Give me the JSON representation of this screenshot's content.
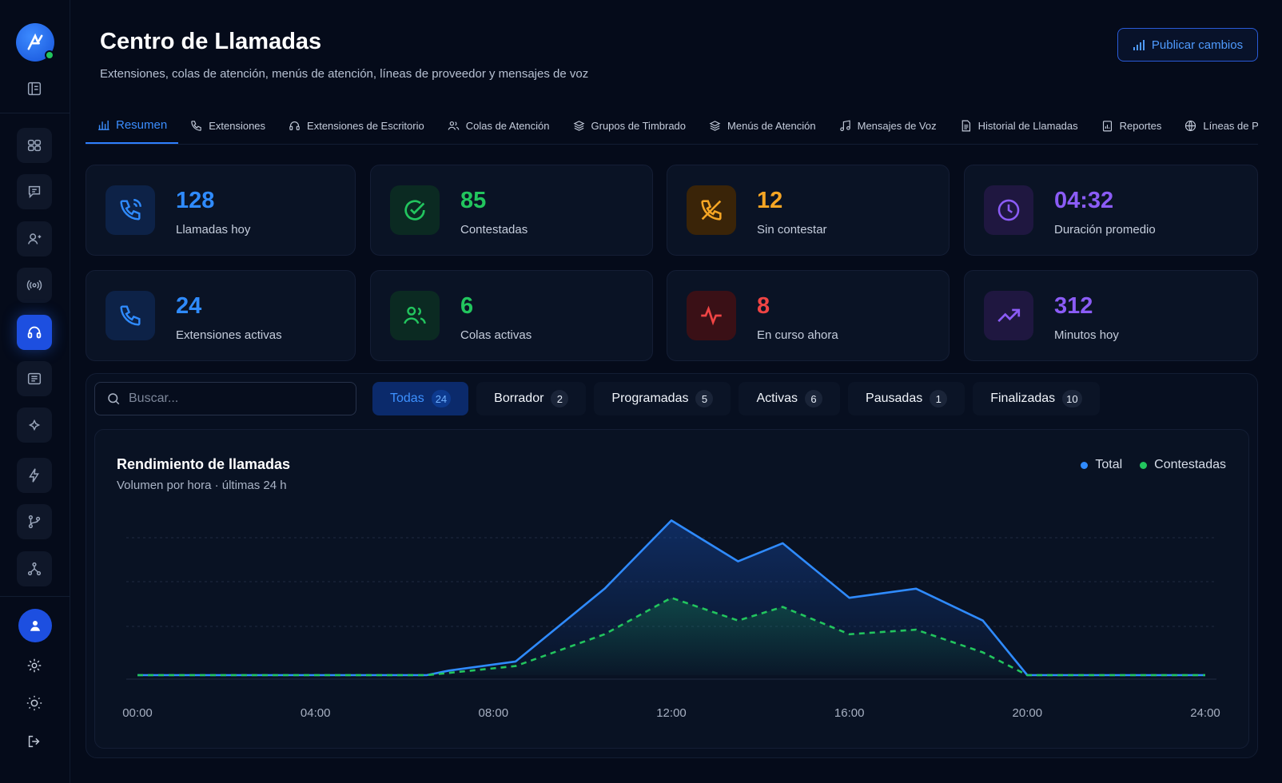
{
  "header": {
    "title": "Centro de Llamadas",
    "subtitle": "Extensiones, colas de atención, menús de atención, líneas de proveedor y mensajes de voz",
    "publish_label": "Publicar cambios"
  },
  "sidebar": {
    "logo_icon": "phone-logo-icon",
    "items": [
      {
        "icon": "dashboard-icon"
      },
      {
        "icon": "chat-icon"
      },
      {
        "icon": "contacts-icon"
      },
      {
        "icon": "broadcast-icon"
      },
      {
        "icon": "headset-icon",
        "active": true
      },
      {
        "icon": "document-icon"
      },
      {
        "icon": "sparkle-icon"
      },
      {
        "icon": "bolt-icon"
      },
      {
        "icon": "branch-icon"
      },
      {
        "icon": "network-icon"
      }
    ]
  },
  "tabs": [
    {
      "label": "Resumen",
      "icon": "bar-chart-icon",
      "active": true
    },
    {
      "label": "Extensiones",
      "icon": "phone-icon"
    },
    {
      "label": "Extensiones de Escritorio",
      "icon": "headset-icon"
    },
    {
      "label": "Colas de Atención",
      "icon": "users-icon"
    },
    {
      "label": "Grupos de Timbrado",
      "icon": "layers-icon"
    },
    {
      "label": "Menús de Atención",
      "icon": "layers-icon"
    },
    {
      "label": "Mensajes de Voz",
      "icon": "music-note-icon"
    },
    {
      "label": "Historial de Llamadas",
      "icon": "file-icon"
    },
    {
      "label": "Reportes",
      "icon": "report-icon"
    },
    {
      "label": "Líneas de Provee",
      "icon": "globe-icon"
    }
  ],
  "stats": [
    {
      "value": "128",
      "label": "Llamadas hoy",
      "icon": "phone-ringing-icon",
      "color": "#2f8bff",
      "bg": "#0d2247"
    },
    {
      "value": "85",
      "label": "Contestadas",
      "icon": "check-circle-icon",
      "color": "#22c55e",
      "bg": "#0b2a22"
    },
    {
      "value": "12",
      "label": "Sin contestar",
      "icon": "phone-missed-icon",
      "color": "#f5a524",
      "bg": "#3a2408"
    },
    {
      "value": "04:32",
      "label": "Duración promedio",
      "icon": "clock-icon",
      "color": "#8b5cf6",
      "bg": "#1f1740"
    },
    {
      "value": "24",
      "label": "Extensiones activas",
      "icon": "phone-icon",
      "color": "#2f8bff",
      "bg": "#0d2247"
    },
    {
      "value": "6",
      "label": "Colas activas",
      "icon": "users-icon",
      "color": "#22c55e",
      "bg": "#0b2a22"
    },
    {
      "value": "8",
      "label": "En curso ahora",
      "icon": "activity-icon",
      "color": "#ef4444",
      "bg": "#3a1016"
    },
    {
      "value": "312",
      "label": "Minutos hoy",
      "icon": "trending-up-icon",
      "color": "#8b5cf6",
      "bg": "#1f1740"
    }
  ],
  "search": {
    "placeholder": "Buscar..."
  },
  "filters": [
    {
      "label": "Todas",
      "count": "24",
      "active": true
    },
    {
      "label": "Borrador",
      "count": "2"
    },
    {
      "label": "Programadas",
      "count": "5"
    },
    {
      "label": "Activas",
      "count": "6"
    },
    {
      "label": "Pausadas",
      "count": "1"
    },
    {
      "label": "Finalizadas",
      "count": "10"
    }
  ],
  "chart": {
    "title": "Rendimiento de llamadas",
    "subtitle": "Volumen por hora · últimas 24 h",
    "legend": [
      {
        "label": "Total",
        "color": "#2f8bff"
      },
      {
        "label": "Contestadas",
        "color": "#22c55e"
      }
    ]
  },
  "chart_data": {
    "type": "area",
    "title": "Rendimiento de llamadas",
    "subtitle": "Volumen por hora · últimas 24 h",
    "x_tick_labels": [
      "00:00",
      "04:00",
      "08:00",
      "12:00",
      "16:00",
      "20:00",
      "24:00"
    ],
    "xlim": [
      0,
      24
    ],
    "ylim": [
      0,
      36
    ],
    "grid": true,
    "legend_position": "top-right",
    "series": [
      {
        "name": "Total",
        "style": "solid",
        "color": "#2f8bff",
        "x": [
          0,
          2,
          4,
          6.5,
          7,
          8.5,
          10.5,
          12,
          13.5,
          14.5,
          16,
          17.5,
          19,
          20,
          22,
          24
        ],
        "y": [
          0,
          0,
          0,
          0,
          1,
          3,
          19,
          34,
          25,
          29,
          17,
          19,
          12,
          0,
          0,
          0
        ]
      },
      {
        "name": "Contestadas",
        "style": "dashed",
        "color": "#22c55e",
        "x": [
          0,
          2,
          4,
          6.5,
          7,
          8.5,
          10.5,
          12,
          13.5,
          14.5,
          16,
          17.5,
          19,
          20,
          22,
          24
        ],
        "y": [
          0,
          0,
          0,
          0,
          0.5,
          2,
          9,
          17,
          12,
          15,
          9,
          10,
          5,
          0,
          0,
          0
        ]
      }
    ]
  }
}
